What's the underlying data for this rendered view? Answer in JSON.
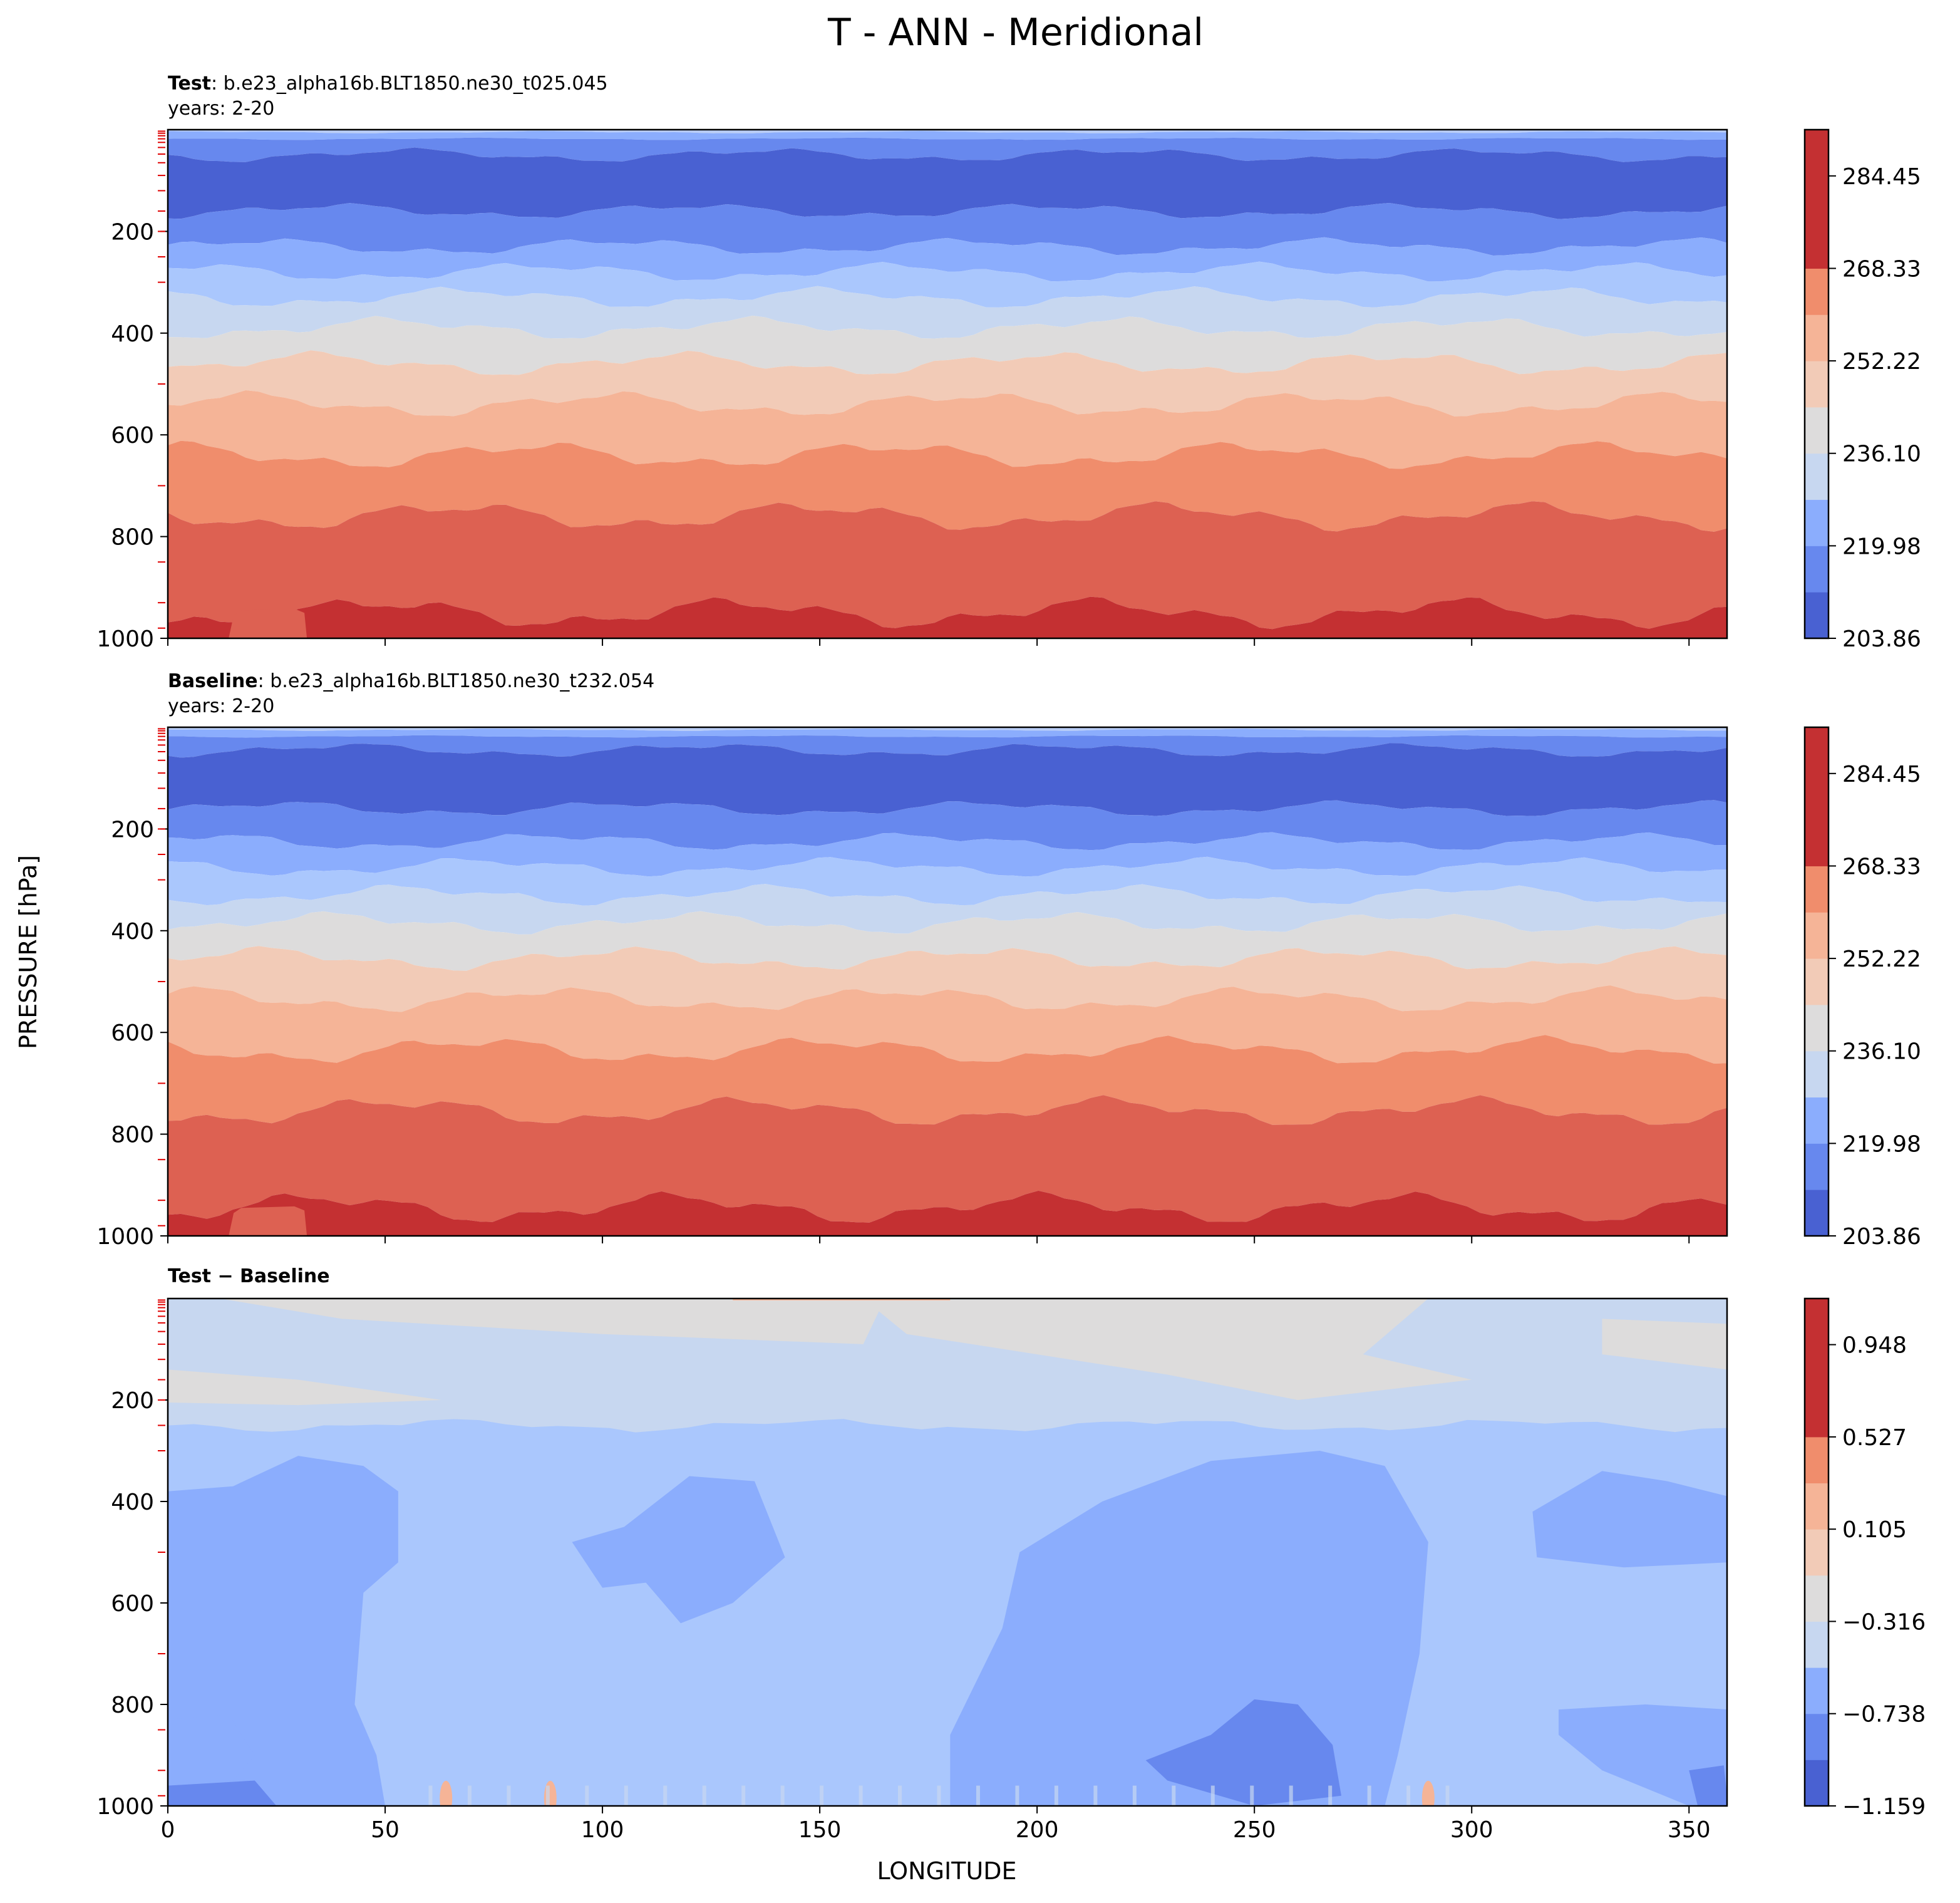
{
  "figure": {
    "title": "T - ANN - Meridional",
    "ylabel": "PRESSURE [hPa]",
    "xlabel": "LONGITUDE"
  },
  "chart_data": [
    {
      "type": "contourf",
      "panel": "test",
      "title_bold": "Test",
      "title_rest": ": b.e23_alpha16b.BLT1850.ne30_t025.045",
      "subtitle": "years: 2-20",
      "x": {
        "label": "LONGITUDE",
        "range": [
          0,
          358.75
        ],
        "ticks": [
          0,
          50,
          100,
          150,
          200,
          250,
          300,
          350
        ]
      },
      "y": {
        "label": "PRESSURE [hPa]",
        "range": [
          0,
          1000
        ],
        "inverted": true,
        "ticks": [
          200,
          400,
          600,
          800,
          1000
        ]
      },
      "colorbar": {
        "levels": [
          203.86,
          211.92,
          219.98,
          228.04,
          236.1,
          244.16,
          252.22,
          260.28,
          268.33,
          276.39,
          284.45,
          292.51
        ],
        "tick_labels": [
          "203.86",
          "219.98",
          "236.10",
          "252.22",
          "268.33",
          "284.45"
        ]
      },
      "band_boundaries_hPa": [
        [
          0,
          5
        ],
        [
          5,
          18
        ],
        [
          18,
          50
        ],
        [
          50,
          160
        ],
        [
          160,
          230
        ],
        [
          230,
          280
        ],
        [
          280,
          330
        ],
        [
          330,
          390
        ],
        [
          390,
          460
        ],
        [
          460,
          540
        ],
        [
          540,
          640
        ],
        [
          640,
          760
        ],
        [
          760,
          950
        ],
        [
          950,
          1000
        ]
      ],
      "band_colors": [
        "#b9cdf6",
        "#8badfd",
        "#6788ee",
        "#4961d2",
        "#6788ee",
        "#8badfd",
        "#aac7fd",
        "#c7d7f0",
        "#dddcdc",
        "#f2cbb7",
        "#f5b497",
        "#f08d6c",
        "#dd6152",
        "#c43032"
      ]
    },
    {
      "type": "contourf",
      "panel": "baseline",
      "title_bold": "Baseline",
      "title_rest": ": b.e23_alpha16b.BLT1850.ne30_t232.054",
      "subtitle": "years: 2-20",
      "x": {
        "label": "LONGITUDE",
        "range": [
          0,
          358.75
        ],
        "ticks": [
          0,
          50,
          100,
          150,
          200,
          250,
          300,
          350
        ]
      },
      "y": {
        "label": "PRESSURE [hPa]",
        "range": [
          0,
          1000
        ],
        "inverted": true,
        "ticks": [
          200,
          400,
          600,
          800,
          1000
        ]
      },
      "colorbar": {
        "levels": [
          203.86,
          211.92,
          219.98,
          228.04,
          236.1,
          244.16,
          252.22,
          260.28,
          268.33,
          276.39,
          284.45,
          292.51
        ],
        "tick_labels": [
          "203.86",
          "219.98",
          "236.10",
          "252.22",
          "268.33",
          "284.45"
        ]
      },
      "band_boundaries_hPa": [
        [
          0,
          5
        ],
        [
          5,
          18
        ],
        [
          18,
          45
        ],
        [
          45,
          160
        ],
        [
          160,
          225
        ],
        [
          225,
          275
        ],
        [
          275,
          330
        ],
        [
          330,
          385
        ],
        [
          385,
          455
        ],
        [
          455,
          535
        ],
        [
          535,
          635
        ],
        [
          635,
          755
        ],
        [
          755,
          945
        ],
        [
          945,
          1000
        ]
      ],
      "band_colors": [
        "#b9cdf6",
        "#8badfd",
        "#6788ee",
        "#4961d2",
        "#6788ee",
        "#8badfd",
        "#aac7fd",
        "#c7d7f0",
        "#dddcdc",
        "#f2cbb7",
        "#f5b497",
        "#f08d6c",
        "#dd6152",
        "#c43032"
      ]
    },
    {
      "type": "contourf",
      "panel": "difference",
      "title_bold": "Test − Baseline",
      "title_rest": "",
      "subtitle": "",
      "x": {
        "label": "LONGITUDE",
        "range": [
          0,
          358.75
        ],
        "ticks": [
          0,
          50,
          100,
          150,
          200,
          250,
          300,
          350
        ]
      },
      "y": {
        "label": "PRESSURE [hPa]",
        "range": [
          0,
          1000
        ],
        "inverted": true,
        "ticks": [
          200,
          400,
          600,
          800,
          1000
        ]
      },
      "colorbar": {
        "levels": [
          -1.159,
          -0.948,
          -0.738,
          -0.527,
          -0.316,
          -0.105,
          0.105,
          0.316,
          0.527,
          0.738,
          0.948,
          1.159
        ],
        "tick_labels": [
          "−1.159",
          "−0.738",
          "−0.316",
          "0.105",
          "0.527",
          "0.948"
        ]
      },
      "regions": {
        "near_zero_upper": {
          "value_range": [
            -0.105,
            0.105
          ],
          "color": "#dddcdc"
        },
        "weak_negative_upper": {
          "value_range": [
            -0.316,
            -0.105
          ],
          "color": "#c7d7f0"
        },
        "negative_mid_low": {
          "value_range": [
            -0.527,
            -0.316
          ],
          "color": "#aac7fd"
        },
        "negative_blobs": {
          "value_range": [
            -0.738,
            -0.527
          ],
          "color": "#8badfd"
        },
        "strong_negative_cores": {
          "value_range": [
            -0.948,
            -0.738
          ],
          "color": "#6788ee"
        },
        "warm_spots_surface": {
          "value_range": [
            0.316,
            0.738
          ],
          "color": "#f5b497"
        }
      }
    }
  ]
}
